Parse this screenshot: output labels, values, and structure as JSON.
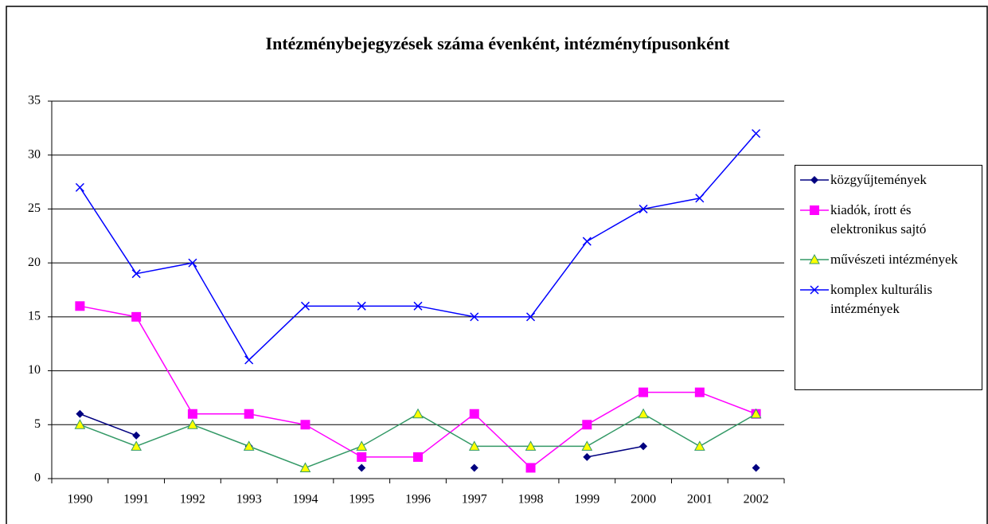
{
  "chart_data": {
    "type": "line",
    "title": "Intézménybejegyzések száma évenként, intézménytípusonként",
    "categories": [
      "1990",
      "1991",
      "1992",
      "1993",
      "1994",
      "1995",
      "1996",
      "1997",
      "1998",
      "1999",
      "2000",
      "2001",
      "2002"
    ],
    "series": [
      {
        "name": "közgyűjtemények",
        "color": "#000080",
        "marker": "diamond",
        "values": [
          6,
          4,
          null,
          3,
          null,
          1,
          null,
          1,
          null,
          2,
          3,
          null,
          1
        ]
      },
      {
        "name": "kiadók, írott és elektronikus sajtó",
        "color": "#ff00ff",
        "marker": "square",
        "values": [
          16,
          15,
          6,
          6,
          5,
          2,
          2,
          6,
          1,
          5,
          8,
          8,
          6
        ]
      },
      {
        "name": "művészeti intézmények",
        "color": "#339966",
        "marker": "triangle",
        "values": [
          5,
          3,
          5,
          3,
          1,
          3,
          6,
          3,
          3,
          3,
          6,
          3,
          6
        ]
      },
      {
        "name": "komplex kulturális intézmények",
        "color": "#0000ff",
        "marker": "x",
        "values": [
          27,
          19,
          20,
          11,
          16,
          16,
          16,
          15,
          15,
          22,
          25,
          26,
          32
        ]
      }
    ],
    "ylim": [
      0,
      35
    ],
    "yticks": [
      0,
      5,
      10,
      15,
      20,
      25,
      30,
      35
    ],
    "grid": true,
    "legend": "right"
  }
}
